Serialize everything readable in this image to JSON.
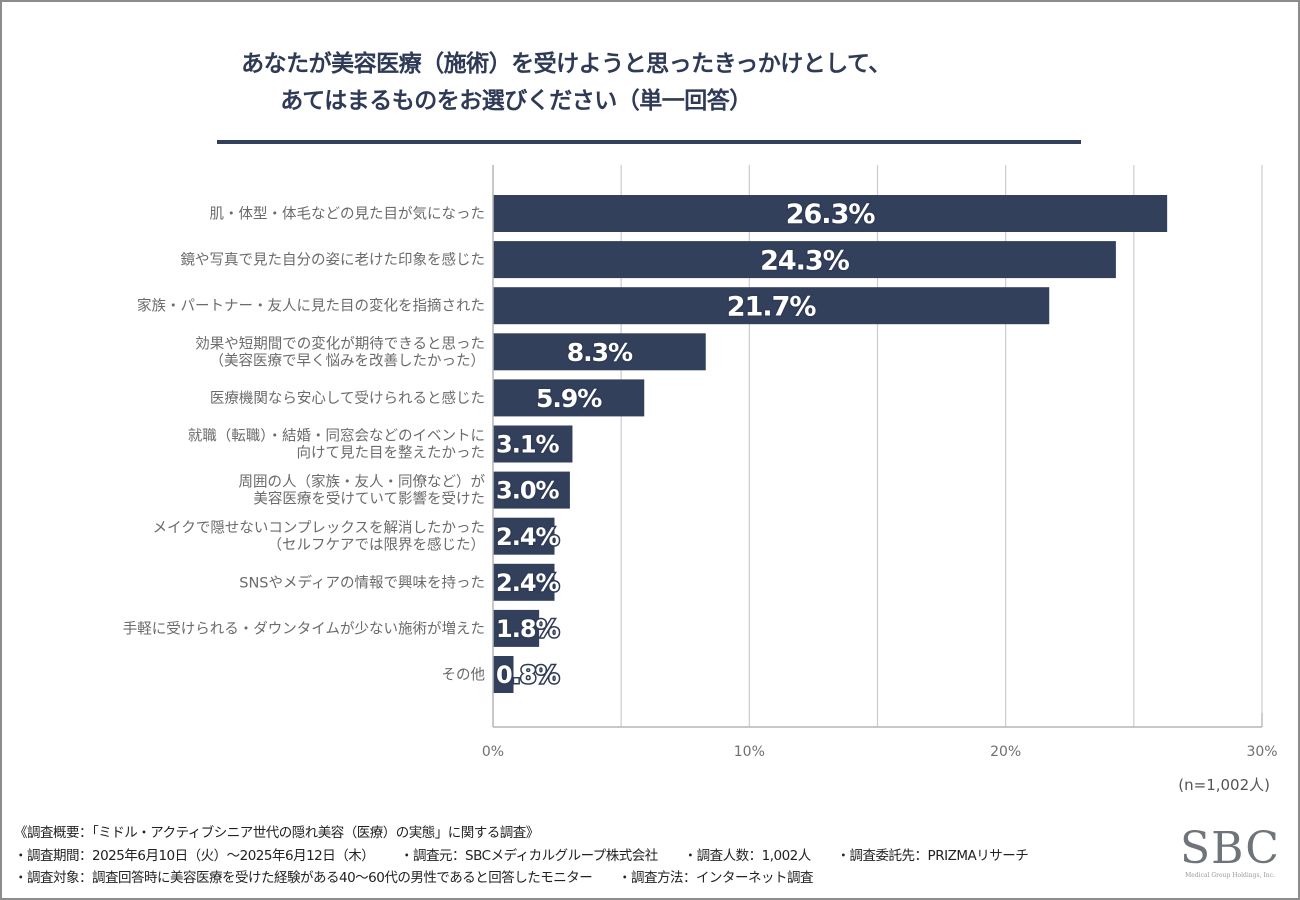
{
  "title": {
    "line1": "あなたが美容医療（施術）を受けようと思ったきっかけとして、",
    "line2": "あてはまるものをお選びください（単一回答）"
  },
  "chart_data": {
    "type": "bar",
    "orientation": "horizontal",
    "title": "あなたが美容医療（施術）を受けようと思ったきっかけとして、あてはまるものをお選びください（単一回答）",
    "xlabel": "",
    "ylabel": "",
    "xlim": [
      0,
      30
    ],
    "grid": true,
    "grid_step": 5,
    "ticks": [
      {
        "value": 0,
        "label": "0%"
      },
      {
        "value": 10,
        "label": "10%"
      },
      {
        "value": 20,
        "label": "20%"
      },
      {
        "value": 30,
        "label": "30%"
      }
    ],
    "categories": [
      [
        "肌・体型・体毛などの見た目が気になった"
      ],
      [
        "鏡や写真で見た自分の姿に老けた印象を感じた"
      ],
      [
        "家族・パートナー・友人に見た目の変化を指摘された"
      ],
      [
        "効果や短期間での変化が期待できると思った",
        "（美容医療で早く悩みを改善したかった）"
      ],
      [
        "医療機関なら安心して受けられると感じた"
      ],
      [
        "就職（転職）・結婚・同窓会などのイベントに",
        "向けて見た目を整えたかった"
      ],
      [
        "周囲の人（家族・友人・同僚など）が",
        "美容医療を受けていて影響を受けた"
      ],
      [
        "メイクで隠せないコンプレックスを解消したかった",
        "（セルフケアでは限界を感じた）"
      ],
      [
        "SNSやメディアの情報で興味を持った"
      ],
      [
        "手軽に受けられる・ダウンタイムが少ない施術が増えた"
      ],
      [
        "その他"
      ]
    ],
    "values": [
      26.3,
      24.3,
      21.7,
      8.3,
      5.9,
      3.1,
      3.0,
      2.4,
      2.4,
      1.8,
      0.8
    ],
    "value_labels": [
      "26.3%",
      "24.3%",
      "21.7%",
      "8.3%",
      "5.9%",
      "3.1%",
      "3.0%",
      "2.4%",
      "2.4%",
      "1.8%",
      "0.8%"
    ],
    "bar_color": "#33405c",
    "grid_color": "#cccccc",
    "sample_size": "(n=1,002人)"
  },
  "footer": {
    "overview": "《調査概要：「ミドル・アクティブシニア世代の隠れ美容（医療）の実態」に関する調査》",
    "period": "・調査期間：2025年6月10日（火）～2025年6月12日（木）",
    "source": "・調査元：SBCメディカルグループ株式会社",
    "respondents": "・調査人数：1,002人",
    "contractor": "・調査委託先：PRIZMAリサーチ",
    "target": "・調査対象：調査回答時に美容医療を受けた経験がある40～60代の男性であると回答したモニター",
    "method": "・調査方法：インターネット調査"
  },
  "logo": {
    "mark": "SBC",
    "sub": "Medical Group Holdings, Inc."
  }
}
